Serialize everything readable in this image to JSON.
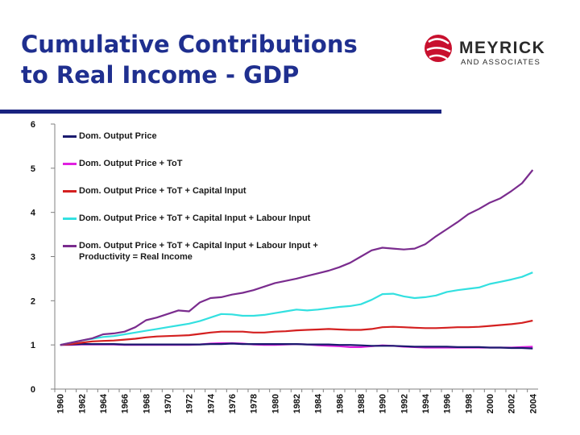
{
  "slide": {
    "title_line1": "Cumulative Contributions",
    "title_line2": "to Real Income - GDP"
  },
  "logo": {
    "name": "MEYRICK",
    "subtitle": "AND ASSOCIATES",
    "brand_color": "#c8102e"
  },
  "colors": {
    "title": "#1f2f8f",
    "rule": "#1a2380"
  },
  "chart_data": {
    "type": "line",
    "x": [
      1960,
      1961,
      1962,
      1963,
      1964,
      1965,
      1966,
      1967,
      1968,
      1969,
      1970,
      1971,
      1972,
      1973,
      1974,
      1975,
      1976,
      1977,
      1978,
      1979,
      1980,
      1981,
      1982,
      1983,
      1984,
      1985,
      1986,
      1987,
      1988,
      1989,
      1990,
      1991,
      1992,
      1993,
      1994,
      1995,
      1996,
      1997,
      1998,
      1999,
      2000,
      2001,
      2002,
      2003,
      2004
    ],
    "x_tick_labels": [
      "1960",
      "1962",
      "1964",
      "1966",
      "1968",
      "1970",
      "1972",
      "1974",
      "1976",
      "1978",
      "1980",
      "1982",
      "1984",
      "1986",
      "1988",
      "1990",
      "1992",
      "1994",
      "1996",
      "1998",
      "2000",
      "2002",
      "2004"
    ],
    "ylim": [
      0,
      6
    ],
    "y_tick_labels": [
      "0",
      "1",
      "2",
      "3",
      "4",
      "5",
      "6"
    ],
    "grid": false,
    "legend_position": "top-left",
    "series": [
      {
        "name": "Dom. Output Price",
        "color": "#1a1a6e",
        "values": [
          1.0,
          1.01,
          1.02,
          1.02,
          1.02,
          1.02,
          1.01,
          1.01,
          1.01,
          1.01,
          1.01,
          1.01,
          1.01,
          1.01,
          1.02,
          1.02,
          1.03,
          1.02,
          1.02,
          1.02,
          1.02,
          1.02,
          1.02,
          1.01,
          1.01,
          1.01,
          1.0,
          1.0,
          0.99,
          0.98,
          0.98,
          0.98,
          0.97,
          0.96,
          0.96,
          0.96,
          0.96,
          0.95,
          0.95,
          0.95,
          0.94,
          0.94,
          0.93,
          0.93,
          0.92
        ]
      },
      {
        "name": "Dom. Output Price + ToT",
        "color": "#e020e0",
        "values": [
          1.0,
          1.0,
          1.01,
          1.01,
          1.01,
          1.01,
          1.0,
          1.0,
          1.0,
          1.0,
          1.0,
          1.0,
          1.0,
          1.01,
          1.03,
          1.04,
          1.04,
          1.03,
          1.01,
          1.0,
          1.0,
          1.01,
          1.02,
          1.01,
          0.99,
          0.98,
          0.97,
          0.95,
          0.95,
          0.97,
          0.99,
          0.98,
          0.96,
          0.95,
          0.94,
          0.94,
          0.94,
          0.94,
          0.94,
          0.94,
          0.94,
          0.94,
          0.94,
          0.95,
          0.96
        ]
      },
      {
        "name": "Dom. Output Price + ToT + Capital Input",
        "color": "#d42020",
        "values": [
          1.0,
          1.02,
          1.05,
          1.08,
          1.09,
          1.1,
          1.12,
          1.14,
          1.17,
          1.19,
          1.2,
          1.21,
          1.22,
          1.25,
          1.28,
          1.3,
          1.3,
          1.3,
          1.28,
          1.28,
          1.3,
          1.31,
          1.33,
          1.34,
          1.35,
          1.36,
          1.35,
          1.34,
          1.34,
          1.36,
          1.4,
          1.41,
          1.4,
          1.39,
          1.38,
          1.38,
          1.39,
          1.4,
          1.4,
          1.41,
          1.43,
          1.45,
          1.47,
          1.5,
          1.55
        ]
      },
      {
        "name": "Dom. Output Price + ToT + Capital Input + Labour Input",
        "color": "#33e0e0",
        "values": [
          1.0,
          1.05,
          1.1,
          1.14,
          1.18,
          1.2,
          1.24,
          1.28,
          1.32,
          1.36,
          1.4,
          1.44,
          1.48,
          1.54,
          1.62,
          1.7,
          1.69,
          1.66,
          1.66,
          1.68,
          1.72,
          1.76,
          1.8,
          1.78,
          1.8,
          1.83,
          1.86,
          1.88,
          1.92,
          2.02,
          2.15,
          2.16,
          2.1,
          2.06,
          2.08,
          2.12,
          2.2,
          2.24,
          2.27,
          2.3,
          2.38,
          2.43,
          2.48,
          2.54,
          2.64
        ]
      },
      {
        "name": "Dom. Output Price + ToT + Capital Input + Labour Input + Productivity = Real Income",
        "color": "#7a2c8e",
        "values": [
          1.0,
          1.05,
          1.1,
          1.15,
          1.24,
          1.26,
          1.3,
          1.4,
          1.56,
          1.62,
          1.7,
          1.78,
          1.76,
          1.96,
          2.06,
          2.08,
          2.14,
          2.18,
          2.24,
          2.32,
          2.4,
          2.45,
          2.5,
          2.56,
          2.62,
          2.68,
          2.76,
          2.86,
          3.0,
          3.14,
          3.2,
          3.18,
          3.16,
          3.18,
          3.28,
          3.46,
          3.62,
          3.78,
          3.96,
          4.08,
          4.22,
          4.32,
          4.48,
          4.66,
          4.96
        ]
      }
    ]
  }
}
